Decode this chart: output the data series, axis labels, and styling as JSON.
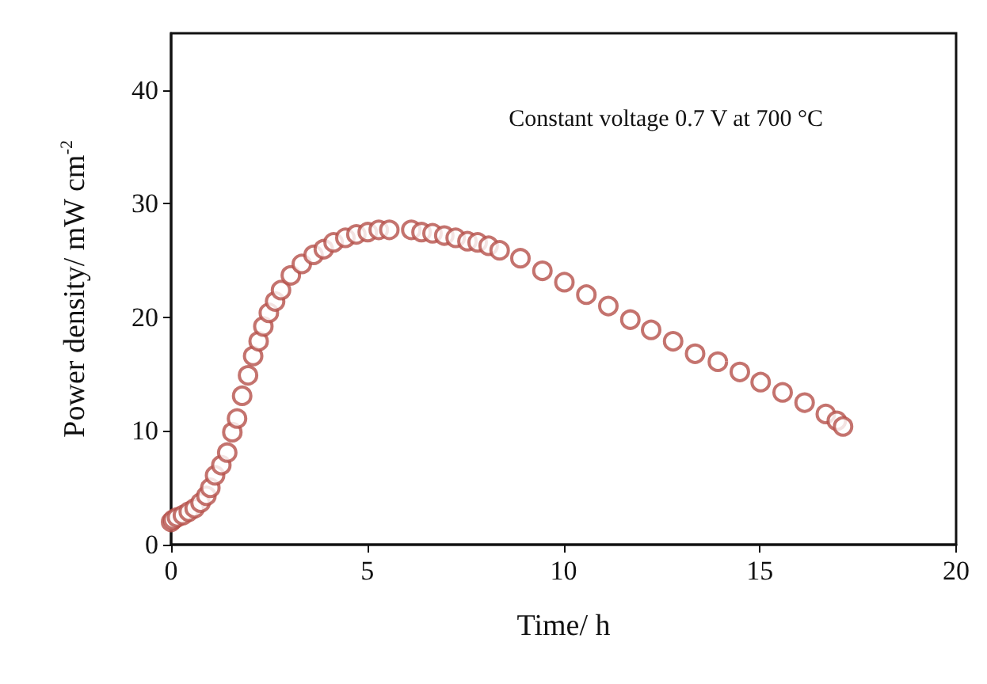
{
  "chart_data": {
    "type": "scatter",
    "xlabel": "Time/ h",
    "ylabel": "Power density/ mW cm$^{-2}$",
    "annotations": [
      "Constant voltage 0.7 V at 700 °C"
    ],
    "marker": "circle",
    "grid": false,
    "xlim": [
      0,
      20
    ],
    "xticks": [
      0,
      5,
      10,
      15,
      20
    ],
    "ylim": [
      0,
      45
    ],
    "yticks": [
      0,
      10,
      20,
      30,
      40
    ],
    "x": [
      0,
      0.05,
      0.15,
      0.3,
      0.45,
      0.6,
      0.75,
      0.9,
      1.0,
      1.12,
      1.28,
      1.43,
      1.56,
      1.68,
      1.81,
      1.96,
      2.09,
      2.23,
      2.35,
      2.49,
      2.65,
      2.8,
      3.05,
      3.33,
      3.63,
      3.89,
      4.14,
      4.44,
      4.72,
      5.01,
      5.29,
      5.56,
      6.12,
      6.38,
      6.66,
      6.96,
      7.25,
      7.55,
      7.81,
      8.09,
      8.37,
      8.9,
      9.46,
      10.02,
      10.58,
      11.14,
      11.7,
      12.23,
      12.79,
      13.35,
      13.93,
      14.49,
      15.02,
      15.58,
      16.14,
      16.68,
      16.96,
      17.12
    ],
    "series": [
      {
        "color": "#b5504a",
        "values": [
          2.0,
          2.2,
          2.4,
          2.6,
          2.9,
          3.2,
          3.7,
          4.3,
          5.0,
          6.1,
          7.0,
          8.1,
          9.9,
          11.1,
          13.1,
          14.9,
          16.6,
          17.9,
          19.2,
          20.4,
          21.4,
          22.4,
          23.7,
          24.7,
          25.5,
          26.0,
          26.6,
          27.0,
          27.3,
          27.5,
          27.7,
          27.7,
          27.7,
          27.5,
          27.4,
          27.2,
          27.0,
          26.7,
          26.6,
          26.3,
          25.9,
          25.2,
          24.1,
          23.1,
          22.0,
          21.0,
          19.8,
          18.9,
          17.9,
          16.8,
          16.1,
          15.2,
          14.3,
          13.4,
          12.5,
          11.5,
          10.9,
          10.4
        ]
      }
    ]
  }
}
